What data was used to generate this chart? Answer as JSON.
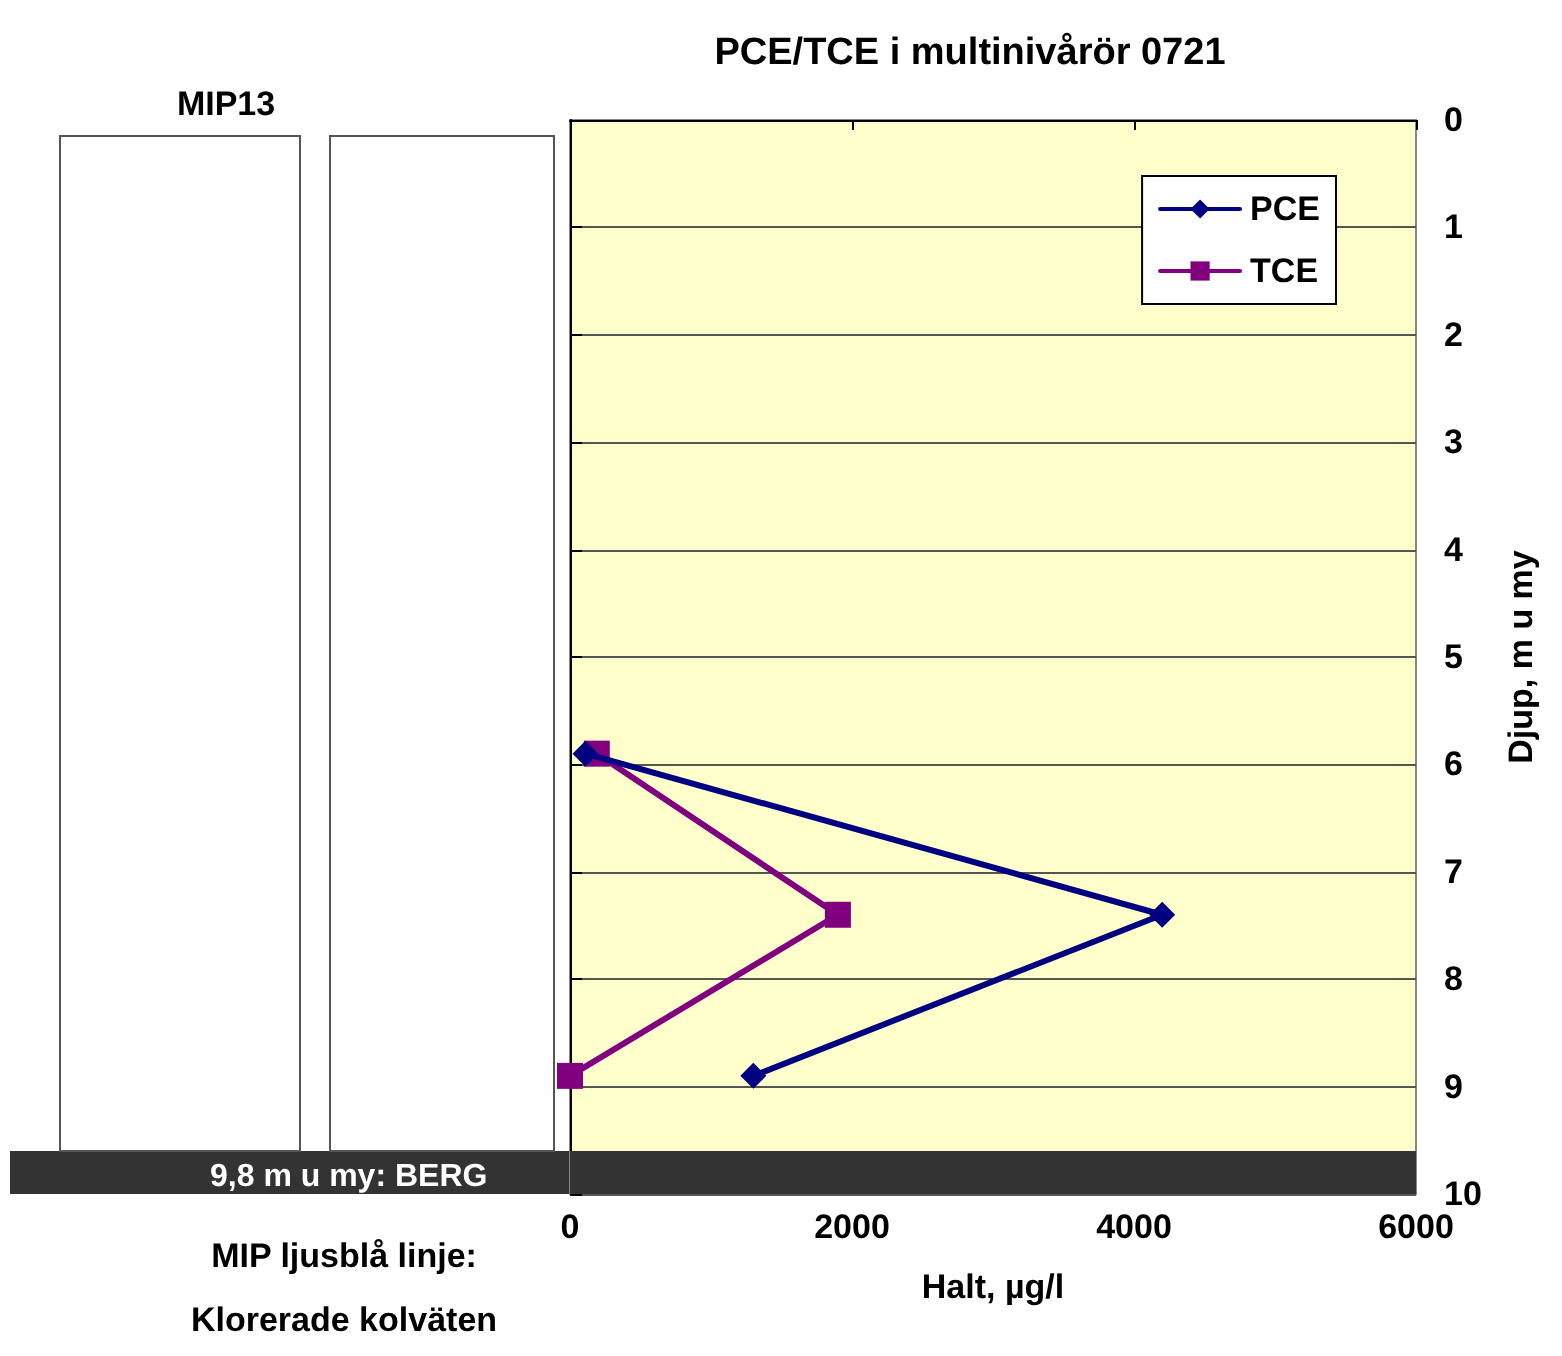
{
  "chart_data": {
    "type": "line",
    "title": "PCE/TCE i multinivårör 0721",
    "xlabel": "Halt, µg/l",
    "ylabel": "Djup, m u my",
    "annotations": [
      "MIP13",
      "MIP ljusblå linje:",
      "Klorerade kolväten"
    ],
    "series": [
      {
        "name": "PCE",
        "color": "#000080",
        "marker": "diamond",
        "x": [
          110,
          4200,
          1300
        ],
        "values": [
          5.9,
          7.4,
          8.9
        ]
      },
      {
        "name": "TCE",
        "color": "#800080",
        "marker": "square",
        "x": [
          190,
          1900,
          0
        ],
        "values": [
          5.9,
          7.4,
          8.9
        ]
      }
    ],
    "xlim": [
      0,
      6000
    ],
    "xticks": [
      0,
      2000,
      4000,
      6000
    ],
    "ylim": [
      10,
      0
    ],
    "yticks": [
      0,
      1,
      2,
      3,
      4,
      5,
      6,
      7,
      8,
      9,
      10
    ],
    "bands": [
      {
        "axis": "y",
        "from": 9.6,
        "to": 10,
        "label": "9,8 m u my: BERG",
        "color": "#333333"
      }
    ],
    "grid": "y",
    "legend": "top right",
    "line_style": "solid"
  }
}
